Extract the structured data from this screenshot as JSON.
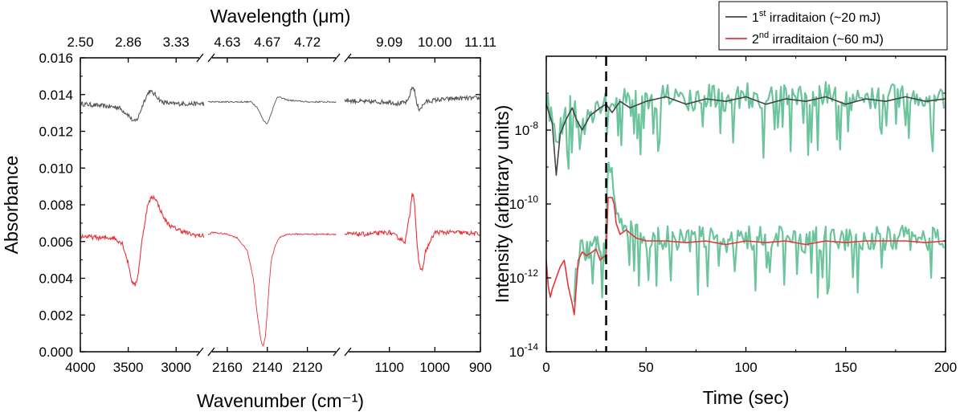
{
  "chart_data": [
    {
      "type": "line",
      "panel": "left",
      "xlabel": "Wavenumber (cm⁻¹)",
      "xlabel_top": "Wavelength (μm)",
      "ylabel": "Absorbance",
      "ylim": [
        0,
        0.016
      ],
      "y_ticks": [
        "0.000",
        "0.002",
        "0.004",
        "0.006",
        "0.008",
        "0.010",
        "0.012",
        "0.014",
        "0.016"
      ],
      "axis_breaks": true,
      "segments": [
        {
          "range": [
            4000,
            2700
          ],
          "bottom_ticks": [
            "4000",
            "3500",
            "3000"
          ],
          "top_ticks": [
            "2.50",
            "2.86",
            "3.33"
          ]
        },
        {
          "range": [
            2170,
            2105
          ],
          "bottom_ticks": [
            "2160",
            "2140",
            "2120"
          ],
          "top_ticks": [
            "4.63",
            "4.67",
            "4.72"
          ]
        },
        {
          "range": [
            1200,
            900
          ],
          "bottom_ticks": [
            "1100",
            "1000",
            "900"
          ],
          "top_ticks": [
            "9.09",
            "10.00",
            "11.11"
          ]
        }
      ],
      "series": [
        {
          "color": "#555555",
          "segments": [
            {
              "x": [
                4000,
                3800,
                3600,
                3500,
                3440,
                3400,
                3330,
                3280,
                3220,
                3150,
                3050,
                2950,
                2800,
                2720
              ],
              "y": [
                0.0135,
                0.0134,
                0.0133,
                0.0129,
                0.0125,
                0.0127,
                0.0137,
                0.0142,
                0.014,
                0.0136,
                0.0135,
                0.0135,
                0.0135,
                0.0135
              ]
            },
            {
              "x": [
                2168,
                2155,
                2148,
                2145,
                2142,
                2140,
                2138,
                2135,
                2130,
                2120,
                2106
              ],
              "y": [
                0.0136,
                0.0136,
                0.0136,
                0.0133,
                0.0126,
                0.0124,
                0.013,
                0.0139,
                0.0137,
                0.0136,
                0.0136
              ]
            },
            {
              "x": [
                1200,
                1150,
                1100,
                1080,
                1060,
                1050,
                1045,
                1040,
                1035,
                1030,
                1020,
                1000,
                950,
                900
              ],
              "y": [
                0.0137,
                0.0136,
                0.0136,
                0.0135,
                0.0136,
                0.0144,
                0.0143,
                0.0135,
                0.0132,
                0.0133,
                0.0136,
                0.0137,
                0.0138,
                0.0138
              ]
            }
          ]
        },
        {
          "color": "#e8333a",
          "segments": [
            {
              "x": [
                4000,
                3800,
                3650,
                3560,
                3500,
                3460,
                3430,
                3400,
                3350,
                3300,
                3260,
                3220,
                3180,
                3120,
                3050,
                2950,
                2850,
                2720
              ],
              "y": [
                0.0063,
                0.0062,
                0.0062,
                0.0059,
                0.0048,
                0.0038,
                0.0036,
                0.0041,
                0.0063,
                0.0079,
                0.0084,
                0.0084,
                0.0079,
                0.0072,
                0.0068,
                0.0066,
                0.0064,
                0.0063
              ]
            },
            {
              "x": [
                2168,
                2160,
                2155,
                2150,
                2147,
                2145,
                2143,
                2142,
                2141,
                2140,
                2139,
                2138,
                2136,
                2134,
                2130,
                2120,
                2106
              ],
              "y": [
                0.0065,
                0.0064,
                0.0062,
                0.0055,
                0.004,
                0.002,
                0.0005,
                0.0003,
                0.0008,
                0.0022,
                0.0038,
                0.005,
                0.0058,
                0.0062,
                0.0064,
                0.0064,
                0.0064
              ]
            },
            {
              "x": [
                1200,
                1150,
                1100,
                1080,
                1065,
                1055,
                1050,
                1045,
                1040,
                1035,
                1028,
                1020,
                1000,
                950,
                900
              ],
              "y": [
                0.0064,
                0.0064,
                0.0065,
                0.0062,
                0.006,
                0.0075,
                0.0087,
                0.0083,
                0.0062,
                0.0047,
                0.0044,
                0.0055,
                0.0065,
                0.0065,
                0.0064
              ]
            }
          ]
        }
      ]
    },
    {
      "type": "line",
      "panel": "right",
      "xlabel": "Time (sec)",
      "ylabel": "Intensity (arbitrary units)",
      "y_scale": "log",
      "xlim": [
        0,
        200
      ],
      "ylim": [
        1e-14,
        1e-06
      ],
      "x_ticks": [
        "0",
        "50",
        "100",
        "150",
        "200"
      ],
      "y_ticks": [
        {
          "base": "10",
          "exp": "-14"
        },
        {
          "base": "10",
          "exp": "-12"
        },
        {
          "base": "10",
          "exp": "-10"
        },
        {
          "base": "10",
          "exp": "-8"
        }
      ],
      "vline_x": 30,
      "legend_position": "top-right",
      "legend": [
        {
          "pre": "1",
          "sup": "st",
          "post": " irraditaion (~20 mJ)",
          "color": "#444444"
        },
        {
          "pre": "2",
          "sup": "nd",
          "post": " irraditaion (~60 mJ)",
          "color": "#e8333a"
        }
      ],
      "series": [
        {
          "role": "raw",
          "color": "#6cc49c",
          "baseline": 5e-08
        },
        {
          "role": "smoothed",
          "color": "#444444",
          "baseline": 5e-08,
          "x": [
            0,
            3,
            5,
            7,
            10,
            13,
            15,
            18,
            22,
            27,
            30,
            33,
            37,
            42,
            50,
            60,
            70,
            80,
            90,
            100,
            110,
            120,
            130,
            140,
            150,
            160,
            170,
            180,
            190,
            200
          ],
          "y": [
            5e-08,
            1.5e-08,
            6e-10,
            8e-09,
            2e-08,
            4e-08,
            2e-08,
            1e-08,
            2.5e-08,
            4e-08,
            5e-08,
            3e-08,
            6e-08,
            4e-08,
            6e-08,
            8e-08,
            5e-08,
            7e-08,
            6e-08,
            8e-08,
            5e-08,
            7e-08,
            6e-08,
            8e-08,
            5e-08,
            7e-08,
            6e-08,
            8e-08,
            6e-08,
            7e-08
          ]
        },
        {
          "role": "raw",
          "color": "#6cc49c",
          "baseline": 1e-11
        },
        {
          "role": "smoothed",
          "color": "#e8333a",
          "baseline": 1e-11,
          "x": [
            0,
            1,
            2,
            3,
            5,
            7,
            9,
            11,
            13,
            14,
            16,
            18,
            20,
            23,
            25,
            27,
            28,
            30,
            31,
            33,
            34,
            35,
            37,
            40,
            45,
            50,
            60,
            70,
            80,
            90,
            100,
            110,
            120,
            130,
            140,
            150,
            160,
            170,
            180,
            190,
            200
          ],
          "y": [
            3e-12,
            6e-13,
            3e-13,
            5e-13,
            1e-12,
            2e-12,
            3e-12,
            6e-13,
            2e-13,
            1e-13,
            3e-12,
            5e-12,
            4e-12,
            5e-12,
            6e-12,
            3e-12,
            3.5e-12,
            4e-12,
            1.5e-10,
            1.5e-10,
            1e-10,
            3e-11,
            1.5e-11,
            2e-11,
            1.2e-11,
            1e-11,
            1e-11,
            9e-12,
            1e-11,
            8e-12,
            1e-11,
            9e-12,
            1e-11,
            8e-12,
            1e-11,
            9e-12,
            1e-11,
            1e-11,
            1e-11,
            9e-12,
            1e-11
          ]
        }
      ]
    }
  ]
}
